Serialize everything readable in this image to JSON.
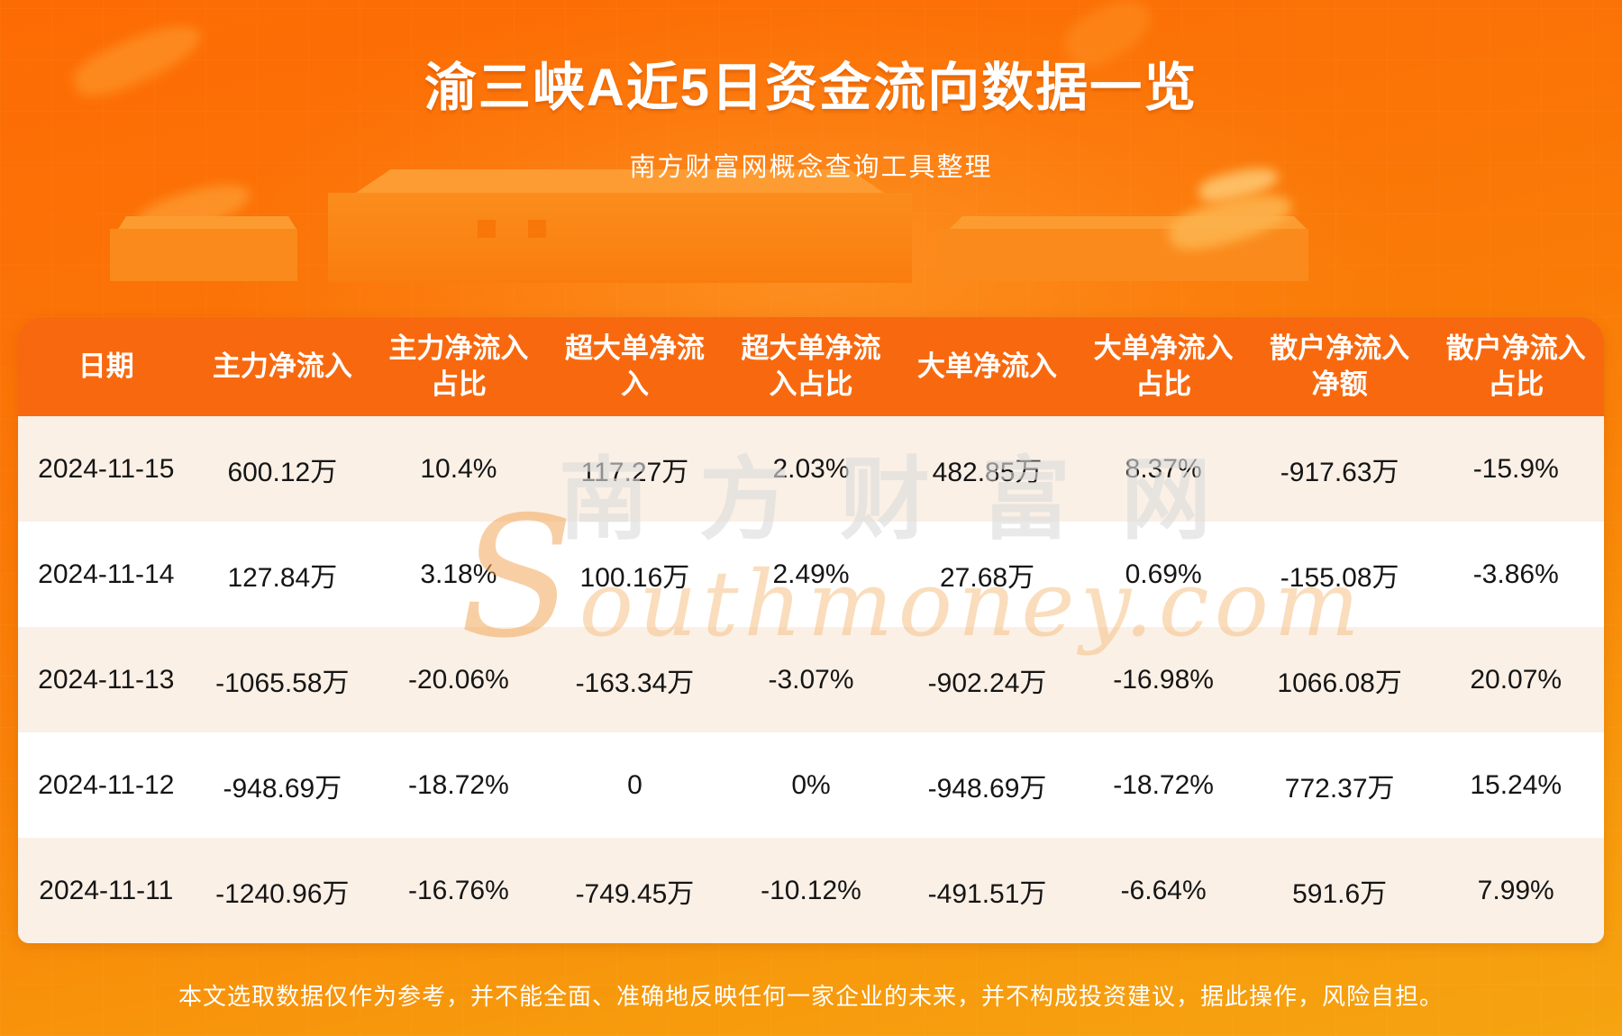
{
  "header": {
    "title": "渝三峡A近5日资金流向数据一览",
    "subtitle": "南方财富网概念查询工具整理"
  },
  "watermark": {
    "cn": "南方财富网",
    "en": "Southmoney.com"
  },
  "footer": {
    "disclaimer": "本文选取数据仅作为参考，并不能全面、准确地反映任何一家企业的未来，并不构成投资建议，据此操作，风险自担。"
  },
  "colors": {
    "accent_orange": "#f8690f",
    "row_cream": "#faf0e6",
    "row_white": "#ffffff",
    "background_top": "#fd6c04",
    "background_bottom": "#f6a411",
    "header_text": "#ffffff",
    "cell_text": "#151515"
  },
  "chart_data": {
    "type": "table",
    "title": "渝三峡A近5日资金流向数据一览",
    "columns": [
      "日期",
      "主力净流入",
      "主力净流入占比",
      "超大单净流入",
      "超大单净流入占比",
      "大单净流入",
      "大单净流入占比",
      "散户净流入净额",
      "散户净流入占比"
    ],
    "rows": [
      [
        "2024-11-15",
        "600.12万",
        "10.4%",
        "117.27万",
        "2.03%",
        "482.85万",
        "8.37%",
        "-917.63万",
        "-15.9%"
      ],
      [
        "2024-11-14",
        "127.84万",
        "3.18%",
        "100.16万",
        "2.49%",
        "27.68万",
        "0.69%",
        "-155.08万",
        "-3.86%"
      ],
      [
        "2024-11-13",
        "-1065.58万",
        "-20.06%",
        "-163.34万",
        "-3.07%",
        "-902.24万",
        "-16.98%",
        "1066.08万",
        "20.07%"
      ],
      [
        "2024-11-12",
        "-948.69万",
        "-18.72%",
        "0",
        "0%",
        "-948.69万",
        "-18.72%",
        "772.37万",
        "15.24%"
      ],
      [
        "2024-11-11",
        "-1240.96万",
        "-16.76%",
        "-749.45万",
        "-10.12%",
        "-491.51万",
        "-6.64%",
        "591.6万",
        "7.99%"
      ]
    ]
  }
}
